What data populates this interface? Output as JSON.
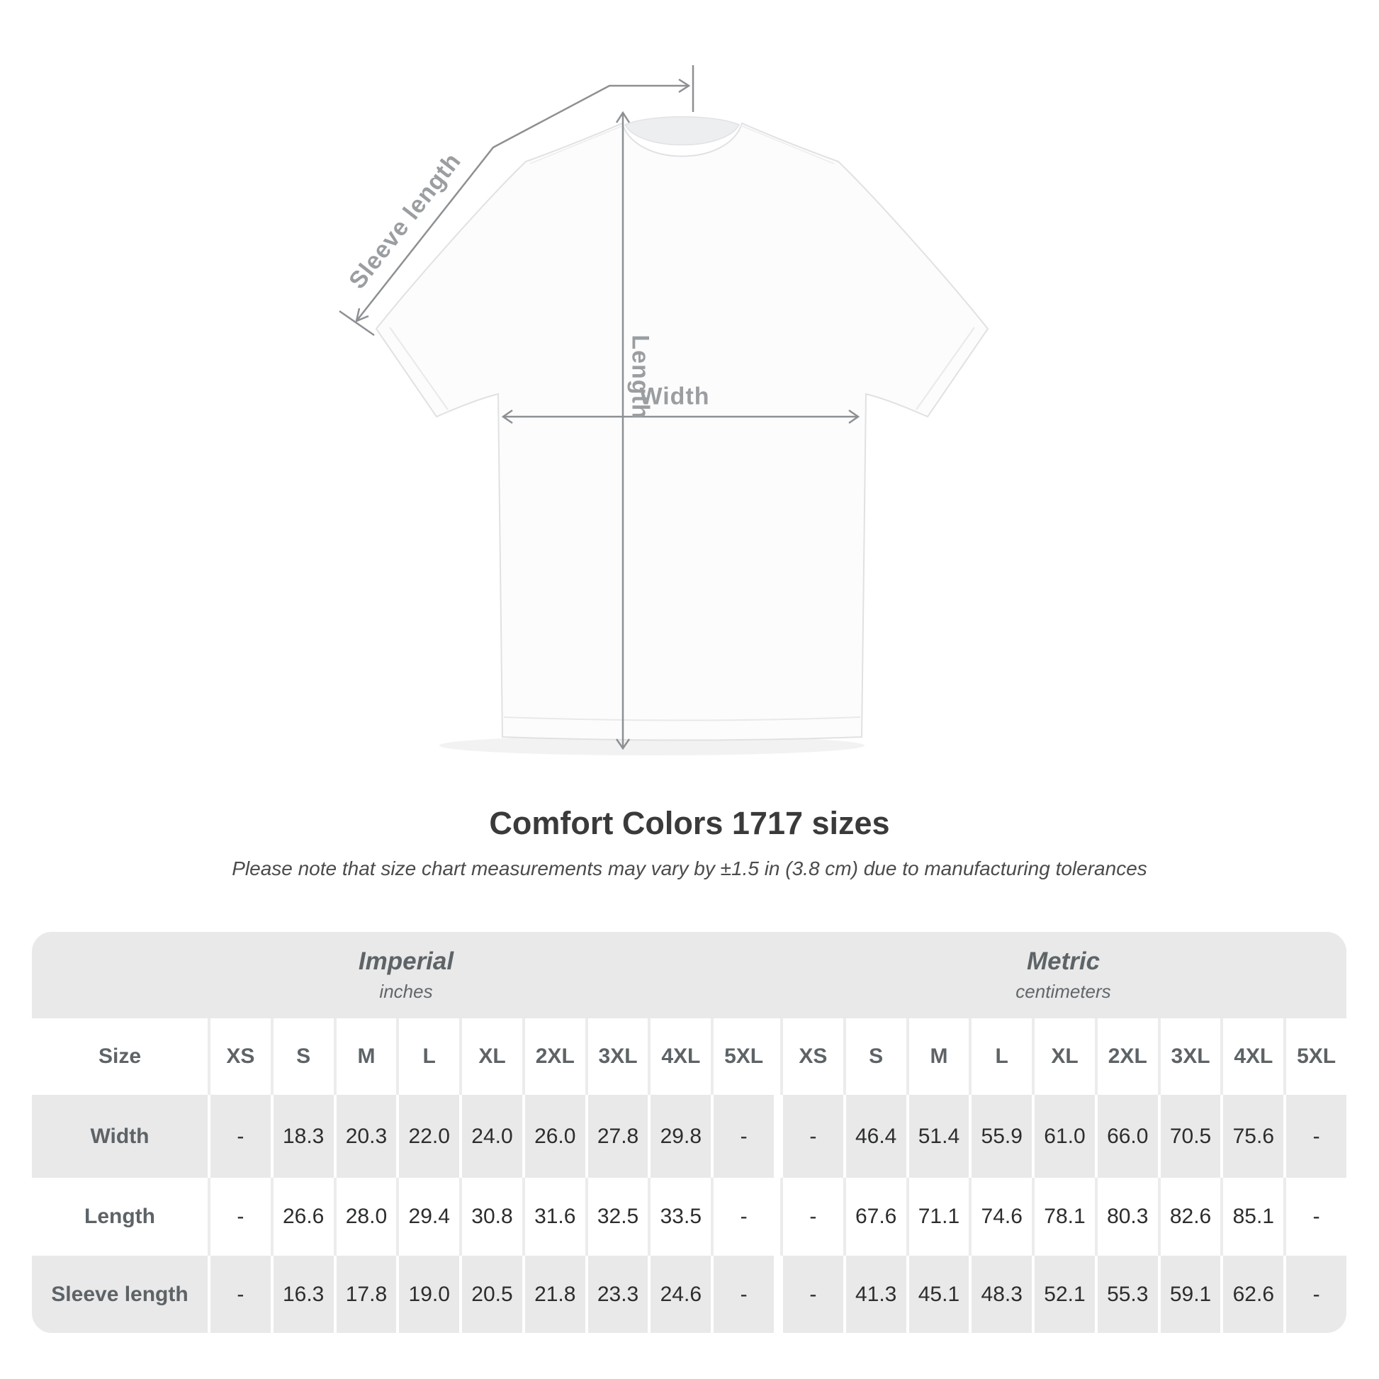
{
  "diagram": {
    "sleeve_label": "Sleeve length",
    "length_label": "Length",
    "width_label": "Width"
  },
  "heading": {
    "title": "Comfort Colors 1717 sizes",
    "subtitle": "Please note that size chart measurements may vary by ±1.5 in (3.8 cm) due to manufacturing tolerances"
  },
  "table": {
    "groups": [
      {
        "label": "Imperial",
        "unit": "inches"
      },
      {
        "label": "Metric",
        "unit": "centimeters"
      }
    ],
    "size_label": "Size",
    "sizes": [
      "XS",
      "S",
      "M",
      "L",
      "XL",
      "2XL",
      "3XL",
      "4XL",
      "5XL"
    ],
    "rows": [
      {
        "label": "Width",
        "imperial": [
          "-",
          "18.3",
          "20.3",
          "22.0",
          "24.0",
          "26.0",
          "27.8",
          "29.8",
          "-"
        ],
        "metric": [
          "-",
          "46.4",
          "51.4",
          "55.9",
          "61.0",
          "66.0",
          "70.5",
          "75.6",
          "-"
        ]
      },
      {
        "label": "Length",
        "imperial": [
          "-",
          "26.6",
          "28.0",
          "29.4",
          "30.8",
          "31.6",
          "32.5",
          "33.5",
          "-"
        ],
        "metric": [
          "-",
          "67.6",
          "71.1",
          "74.6",
          "78.1",
          "80.3",
          "82.6",
          "85.1",
          "-"
        ]
      },
      {
        "label": "Sleeve length",
        "imperial": [
          "-",
          "16.3",
          "17.8",
          "19.0",
          "20.5",
          "21.8",
          "23.3",
          "24.6",
          "-"
        ],
        "metric": [
          "-",
          "41.3",
          "45.1",
          "48.3",
          "52.1",
          "55.3",
          "59.1",
          "62.6",
          "-"
        ]
      }
    ]
  },
  "colors": {
    "band": "#e9e9ea",
    "separator": "#ececed",
    "annotation_line": "#8d9093",
    "annotation_text": "#9b9ea1",
    "table_header_text": "#5d6366",
    "table_value_text": "#2b2d2e",
    "title_text": "#3a3a3a",
    "subtitle_text": "#4b4b4b"
  }
}
